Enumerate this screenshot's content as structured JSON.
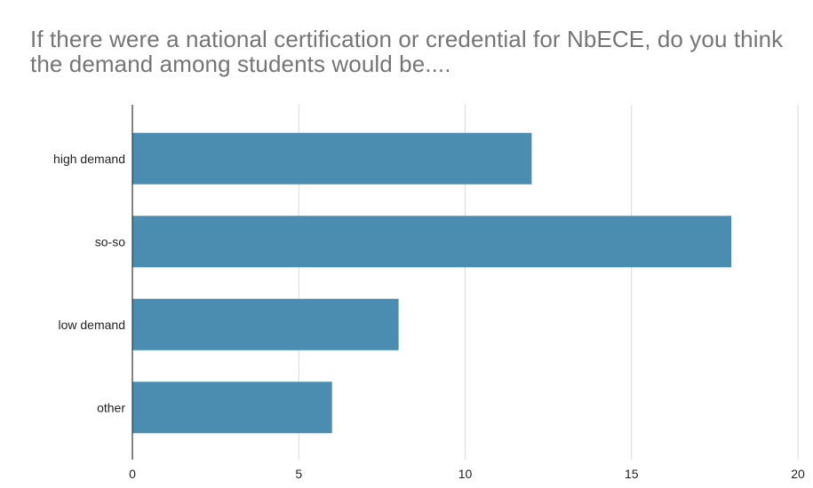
{
  "chart_data": {
    "type": "bar",
    "orientation": "horizontal",
    "title": "If there were a national certification or credential for NbECE, do you think the demand among students would be....",
    "categories": [
      "high demand",
      "so-so",
      "low demand",
      "other"
    ],
    "values": [
      12,
      18,
      8,
      6
    ],
    "xlim": [
      0,
      20
    ],
    "x_ticks": [
      0,
      5,
      10,
      15,
      20
    ],
    "xlabel": "",
    "ylabel": "",
    "grid": true,
    "legend": "none",
    "bar_color": "#4a8db0",
    "grid_color": "#d9d9d9"
  }
}
